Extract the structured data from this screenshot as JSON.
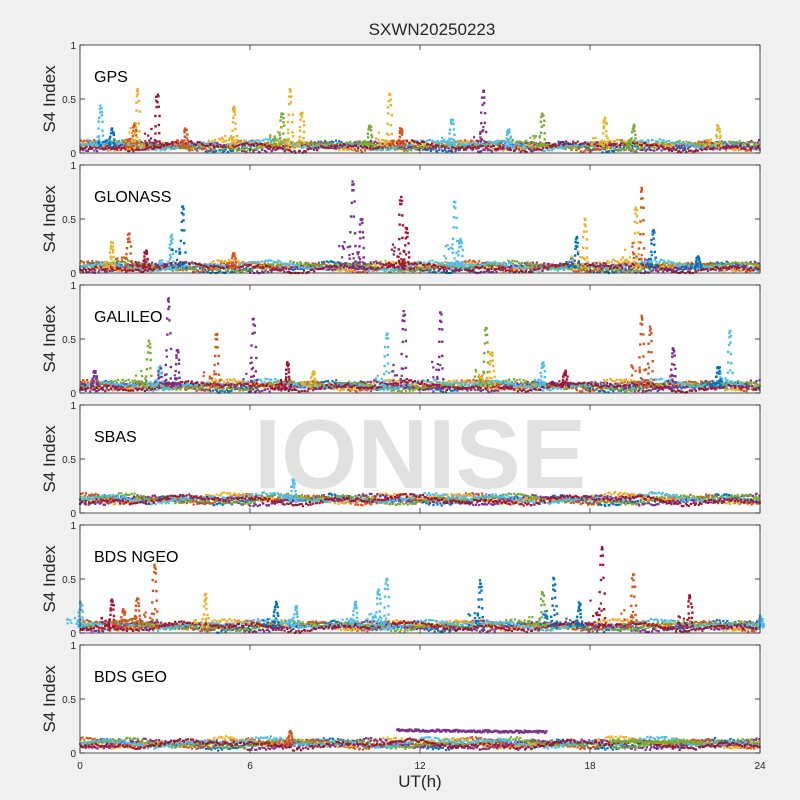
{
  "chart_data": {
    "type": "scatter",
    "title": "SXWN20250223",
    "xlabel": "UT(h)",
    "ylabel": "S4 Index",
    "xlim": [
      0,
      24
    ],
    "xticks": [
      "0",
      "6",
      "12",
      "18",
      "24"
    ],
    "ylim": [
      0,
      1
    ],
    "yticks": [
      "0",
      "0.5",
      "1"
    ],
    "grid": false,
    "watermark": "IONISE",
    "palette": [
      "#0072BD",
      "#D95319",
      "#EDB120",
      "#7E2F8E",
      "#77AC30",
      "#4DBEEE",
      "#A2142F"
    ],
    "panels": [
      {
        "label": "GPS",
        "baseline": 0.06,
        "spikes": [
          {
            "x": 0.7,
            "peak": 0.43,
            "color": 5
          },
          {
            "x": 1.1,
            "peak": 0.22,
            "color": 0
          },
          {
            "x": 1.9,
            "peak": 0.28,
            "color": 1
          },
          {
            "x": 2.0,
            "peak": 0.6,
            "color": 2
          },
          {
            "x": 2.7,
            "peak": 0.53,
            "color": 6
          },
          {
            "x": 3.7,
            "peak": 0.22,
            "color": 1
          },
          {
            "x": 5.4,
            "peak": 0.43,
            "color": 2
          },
          {
            "x": 7.1,
            "peak": 0.37,
            "color": 4
          },
          {
            "x": 7.4,
            "peak": 0.58,
            "color": 2
          },
          {
            "x": 7.8,
            "peak": 0.38,
            "color": 2
          },
          {
            "x": 10.2,
            "peak": 0.25,
            "color": 4
          },
          {
            "x": 10.9,
            "peak": 0.55,
            "color": 2
          },
          {
            "x": 11.3,
            "peak": 0.22,
            "color": 1
          },
          {
            "x": 13.1,
            "peak": 0.32,
            "color": 5
          },
          {
            "x": 14.2,
            "peak": 0.58,
            "color": 3
          },
          {
            "x": 15.1,
            "peak": 0.22,
            "color": 5
          },
          {
            "x": 16.3,
            "peak": 0.37,
            "color": 4
          },
          {
            "x": 18.5,
            "peak": 0.32,
            "color": 2
          },
          {
            "x": 19.5,
            "peak": 0.26,
            "color": 4
          },
          {
            "x": 22.5,
            "peak": 0.25,
            "color": 2
          }
        ]
      },
      {
        "label": "GLONASS",
        "baseline": 0.05,
        "spikes": [
          {
            "x": 1.1,
            "peak": 0.28,
            "color": 2
          },
          {
            "x": 1.7,
            "peak": 0.36,
            "color": 1
          },
          {
            "x": 2.3,
            "peak": 0.2,
            "color": 6
          },
          {
            "x": 3.2,
            "peak": 0.34,
            "color": 5
          },
          {
            "x": 3.6,
            "peak": 0.62,
            "color": 0
          },
          {
            "x": 5.4,
            "peak": 0.18,
            "color": 1
          },
          {
            "x": 9.6,
            "peak": 0.85,
            "color": 3
          },
          {
            "x": 9.9,
            "peak": 0.5,
            "color": 3
          },
          {
            "x": 11.3,
            "peak": 0.7,
            "color": 6
          },
          {
            "x": 11.5,
            "peak": 0.42,
            "color": 6
          },
          {
            "x": 13.2,
            "peak": 0.67,
            "color": 5
          },
          {
            "x": 13.4,
            "peak": 0.3,
            "color": 5
          },
          {
            "x": 17.5,
            "peak": 0.32,
            "color": 0
          },
          {
            "x": 17.8,
            "peak": 0.5,
            "color": 2
          },
          {
            "x": 19.6,
            "peak": 0.6,
            "color": 2
          },
          {
            "x": 19.8,
            "peak": 0.78,
            "color": 1
          },
          {
            "x": 20.2,
            "peak": 0.4,
            "color": 0
          },
          {
            "x": 21.8,
            "peak": 0.15,
            "color": 0
          }
        ]
      },
      {
        "label": "GALILEO",
        "baseline": 0.06,
        "spikes": [
          {
            "x": 0.5,
            "peak": 0.2,
            "color": 3
          },
          {
            "x": 2.4,
            "peak": 0.48,
            "color": 4
          },
          {
            "x": 2.8,
            "peak": 0.25,
            "color": 5
          },
          {
            "x": 3.1,
            "peak": 0.88,
            "color": 3
          },
          {
            "x": 3.4,
            "peak": 0.4,
            "color": 3
          },
          {
            "x": 4.8,
            "peak": 0.55,
            "color": 1
          },
          {
            "x": 6.1,
            "peak": 0.7,
            "color": 3
          },
          {
            "x": 7.3,
            "peak": 0.28,
            "color": 6
          },
          {
            "x": 8.2,
            "peak": 0.2,
            "color": 2
          },
          {
            "x": 10.8,
            "peak": 0.55,
            "color": 5
          },
          {
            "x": 11.4,
            "peak": 0.75,
            "color": 3
          },
          {
            "x": 12.7,
            "peak": 0.75,
            "color": 3
          },
          {
            "x": 14.3,
            "peak": 0.6,
            "color": 4
          },
          {
            "x": 14.5,
            "peak": 0.38,
            "color": 2
          },
          {
            "x": 16.3,
            "peak": 0.28,
            "color": 5
          },
          {
            "x": 17.1,
            "peak": 0.2,
            "color": 6
          },
          {
            "x": 19.8,
            "peak": 0.7,
            "color": 1
          },
          {
            "x": 20.1,
            "peak": 0.6,
            "color": 1
          },
          {
            "x": 20.9,
            "peak": 0.42,
            "color": 3
          },
          {
            "x": 22.9,
            "peak": 0.58,
            "color": 5
          },
          {
            "x": 22.5,
            "peak": 0.25,
            "color": 0
          }
        ]
      },
      {
        "label": "SBAS",
        "baseline": 0.12,
        "spikes": [
          {
            "x": 7.5,
            "peak": 0.3,
            "color": 5
          }
        ]
      },
      {
        "label": "BDS NGEO",
        "baseline": 0.06,
        "spikes": [
          {
            "x": 0.0,
            "peak": 0.28,
            "color": 5
          },
          {
            "x": 1.1,
            "peak": 0.3,
            "color": 6
          },
          {
            "x": 1.5,
            "peak": 0.22,
            "color": 1
          },
          {
            "x": 2.0,
            "peak": 0.32,
            "color": 1
          },
          {
            "x": 2.6,
            "peak": 0.62,
            "color": 1
          },
          {
            "x": 4.4,
            "peak": 0.35,
            "color": 2
          },
          {
            "x": 6.9,
            "peak": 0.28,
            "color": 0
          },
          {
            "x": 7.6,
            "peak": 0.25,
            "color": 5
          },
          {
            "x": 9.7,
            "peak": 0.28,
            "color": 5
          },
          {
            "x": 10.5,
            "peak": 0.4,
            "color": 5
          },
          {
            "x": 10.8,
            "peak": 0.5,
            "color": 5
          },
          {
            "x": 14.1,
            "peak": 0.48,
            "color": 0
          },
          {
            "x": 16.3,
            "peak": 0.38,
            "color": 4
          },
          {
            "x": 16.7,
            "peak": 0.5,
            "color": 0
          },
          {
            "x": 17.6,
            "peak": 0.28,
            "color": 0
          },
          {
            "x": 18.4,
            "peak": 0.8,
            "color": 6
          },
          {
            "x": 19.5,
            "peak": 0.55,
            "color": 1
          },
          {
            "x": 21.5,
            "peak": 0.35,
            "color": 6
          },
          {
            "x": 24.0,
            "peak": 0.15,
            "color": 5
          }
        ]
      },
      {
        "label": "BDS GEO",
        "baseline": 0.08,
        "spikes": [
          {
            "x": 7.4,
            "peak": 0.2,
            "color": 1
          }
        ],
        "bands": [
          {
            "x0": 11.2,
            "x1": 16.5,
            "y": 0.21,
            "color": 3
          },
          {
            "x0": 18.7,
            "x1": 22.0,
            "y": 0.11,
            "color": 4
          }
        ]
      }
    ]
  }
}
